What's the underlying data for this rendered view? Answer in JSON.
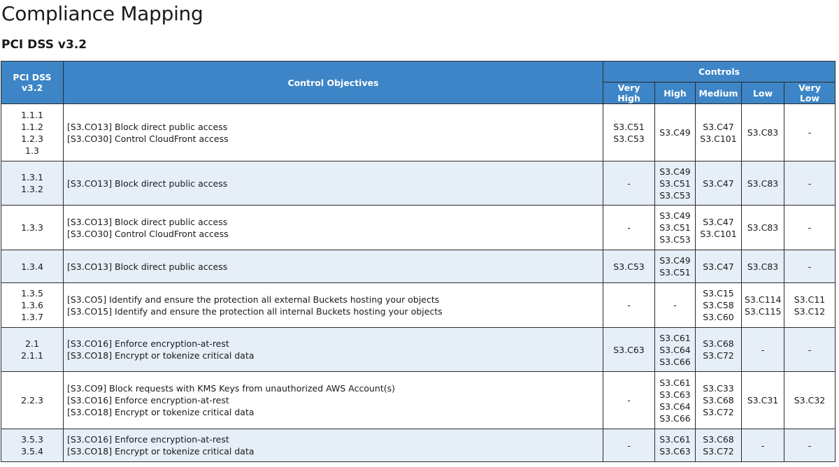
{
  "page": {
    "title": "Compliance Mapping",
    "section_title": "PCI DSS v3.2"
  },
  "table": {
    "headers": {
      "requirement": "PCI DSS v3.2",
      "objectives": "Control Objectives",
      "controls": "Controls",
      "levels": [
        "Very High",
        "High",
        "Medium",
        "Low",
        "Very Low"
      ]
    },
    "rows": [
      {
        "requirements": [
          "1.1.1",
          "1.1.2",
          "1.2.3",
          "1.3"
        ],
        "objectives": [
          "[S3.CO13] Block direct public access",
          "[S3.CO30] Control CloudFront access"
        ],
        "very_high": [
          "S3.C51",
          "S3.C53"
        ],
        "high": [
          "S3.C49"
        ],
        "medium": [
          "S3.C47",
          "S3.C101"
        ],
        "low": [
          "S3.C83"
        ],
        "very_low": [
          "-"
        ]
      },
      {
        "requirements": [
          "1.3.1",
          "1.3.2"
        ],
        "objectives": [
          "[S3.CO13] Block direct public access"
        ],
        "very_high": [
          "-"
        ],
        "high": [
          "S3.C49",
          "S3.C51",
          "S3.C53"
        ],
        "medium": [
          "S3.C47"
        ],
        "low": [
          "S3.C83"
        ],
        "very_low": [
          "-"
        ]
      },
      {
        "requirements": [
          "1.3.3"
        ],
        "objectives": [
          "[S3.CO13] Block direct public access",
          "[S3.CO30] Control CloudFront access"
        ],
        "very_high": [
          "-"
        ],
        "high": [
          "S3.C49",
          "S3.C51",
          "S3.C53"
        ],
        "medium": [
          "S3.C47",
          "S3.C101"
        ],
        "low": [
          "S3.C83"
        ],
        "very_low": [
          "-"
        ]
      },
      {
        "requirements": [
          "1.3.4"
        ],
        "objectives": [
          "[S3.CO13] Block direct public access"
        ],
        "very_high": [
          "S3.C53"
        ],
        "high": [
          "S3.C49",
          "S3.C51"
        ],
        "medium": [
          "S3.C47"
        ],
        "low": [
          "S3.C83"
        ],
        "very_low": [
          "-"
        ]
      },
      {
        "requirements": [
          "1.3.5",
          "1.3.6",
          "1.3.7"
        ],
        "objectives": [
          "[S3.CO5] Identify and ensure the protection all external Buckets hosting your objects",
          "[S3.CO15] Identify and ensure the protection all internal Buckets hosting your objects"
        ],
        "very_high": [
          "-"
        ],
        "high": [
          "-"
        ],
        "medium": [
          "S3.C15",
          "S3.C58",
          "S3.C60"
        ],
        "low": [
          "S3.C114",
          "S3.C115"
        ],
        "very_low": [
          "S3.C11",
          "S3.C12"
        ]
      },
      {
        "requirements": [
          "2.1",
          "2.1.1"
        ],
        "objectives": [
          "[S3.CO16] Enforce encryption-at-rest",
          "[S3.CO18] Encrypt or tokenize critical data"
        ],
        "very_high": [
          "S3.C63"
        ],
        "high": [
          "S3.C61",
          "S3.C64",
          "S3.C66"
        ],
        "medium": [
          "S3.C68",
          "S3.C72"
        ],
        "low": [
          "-"
        ],
        "very_low": [
          "-"
        ]
      },
      {
        "requirements": [
          "2.2.3"
        ],
        "objectives": [
          "[S3.CO9] Block requests with KMS Keys from unauthorized AWS Account(s)",
          "[S3.CO16] Enforce encryption-at-rest",
          "[S3.CO18] Encrypt or tokenize critical data"
        ],
        "very_high": [
          "-"
        ],
        "high": [
          "S3.C61",
          "S3.C63",
          "S3.C64",
          "S3.C66"
        ],
        "medium": [
          "S3.C33",
          "S3.C68",
          "S3.C72"
        ],
        "low": [
          "S3.C31"
        ],
        "very_low": [
          "S3.C32"
        ]
      },
      {
        "requirements": [
          "3.5.3",
          "3.5.4"
        ],
        "objectives": [
          "[S3.CO16] Enforce encryption-at-rest",
          "[S3.CO18] Encrypt or tokenize critical data"
        ],
        "very_high": [
          "-"
        ],
        "high": [
          "S3.C61",
          "S3.C63"
        ],
        "medium": [
          "S3.C68",
          "S3.C72"
        ],
        "low": [
          "-"
        ],
        "very_low": [
          "-"
        ]
      }
    ]
  }
}
